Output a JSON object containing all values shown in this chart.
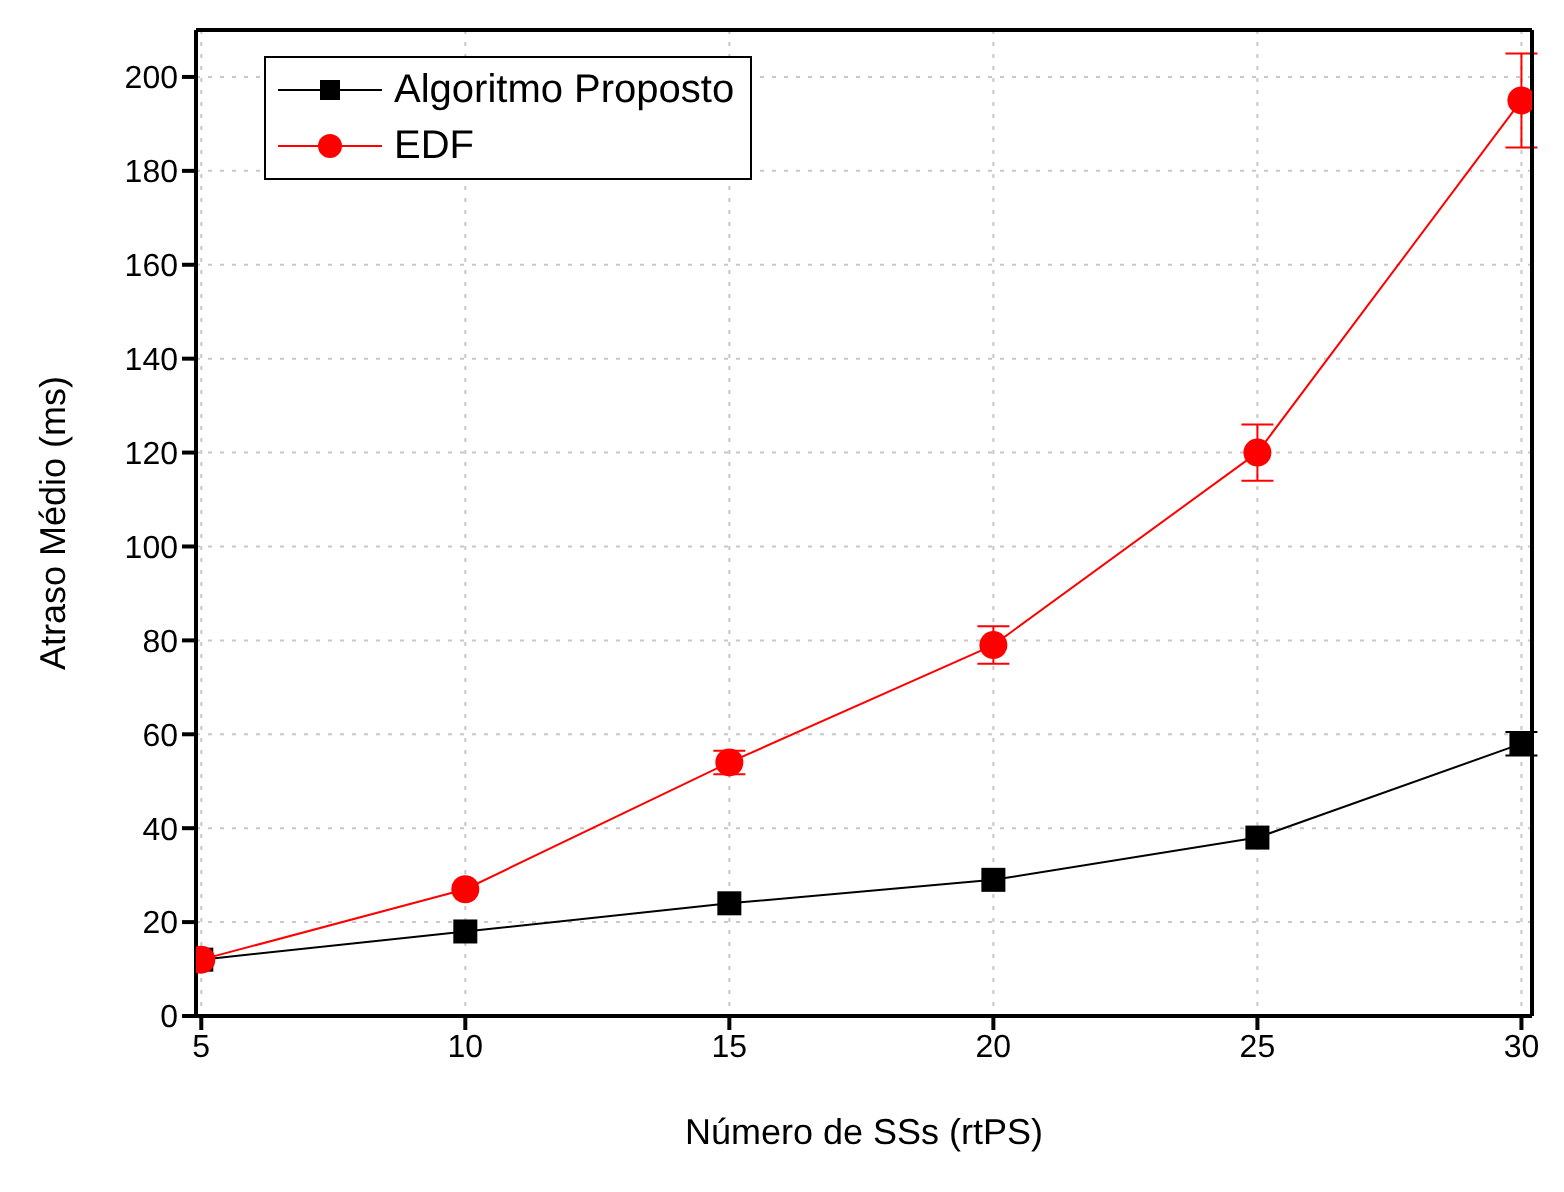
{
  "chart_data": {
    "type": "line",
    "xlabel": "Número de SSs (rtPS)",
    "ylabel": "Atraso Médio (ms)",
    "x": [
      5,
      10,
      15,
      20,
      25,
      30
    ],
    "series": [
      {
        "name": "Algoritmo Proposto",
        "color": "#000000",
        "marker": "square",
        "values": [
          12,
          18,
          24,
          29,
          38,
          58
        ],
        "errors": [
          null,
          null,
          null,
          null,
          null,
          2.5
        ]
      },
      {
        "name": "EDF",
        "color": "#ff0000",
        "marker": "circle",
        "values": [
          12,
          27,
          54,
          79,
          120,
          195
        ],
        "errors": [
          null,
          null,
          2.5,
          4,
          6,
          10
        ]
      }
    ],
    "xlim": [
      4.9,
      30.2
    ],
    "xticks": [
      5,
      10,
      15,
      20,
      25,
      30
    ],
    "ylim": [
      0,
      210
    ],
    "yticks": [
      0,
      20,
      40,
      60,
      80,
      100,
      120,
      140,
      160,
      180,
      200
    ],
    "grid": true,
    "legend": "top left",
    "line_style": "solid"
  }
}
